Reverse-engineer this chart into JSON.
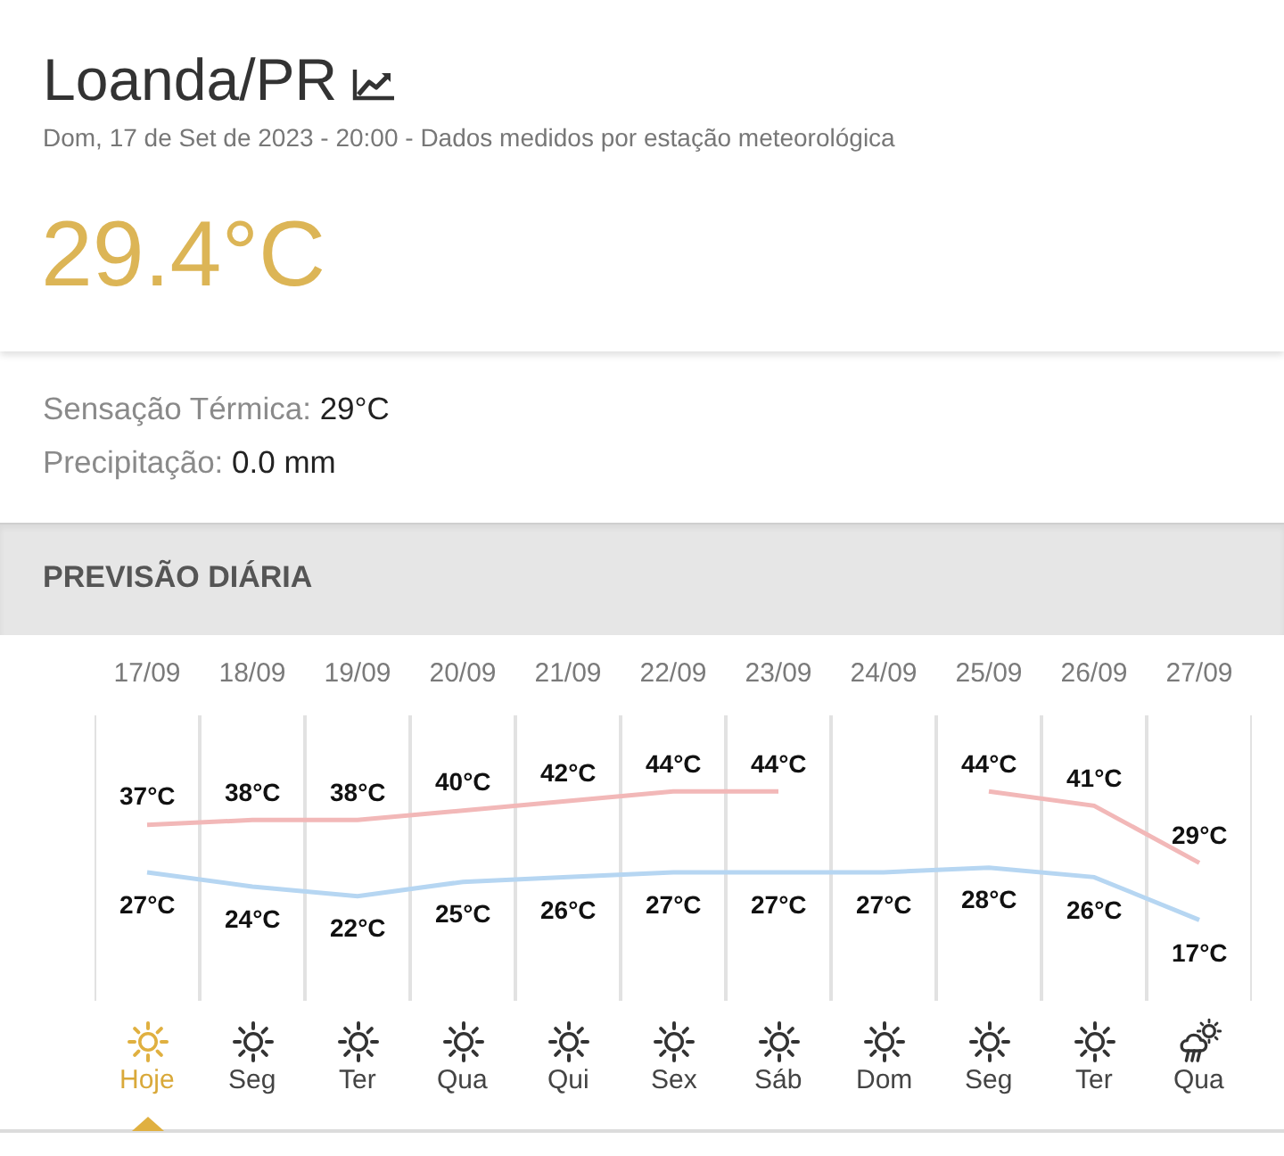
{
  "chart_data": {
    "type": "line",
    "title": "Loanda/PR",
    "subtitle": "Dom, 17 de Set de 2023 - 20:00 - Dados medidos por estação meteorológica",
    "categories": [
      "17/09",
      "18/09",
      "19/09",
      "20/09",
      "21/09",
      "22/09",
      "23/09",
      "24/09",
      "25/09",
      "26/09",
      "27/09"
    ],
    "series": [
      {
        "color": "#f2b8b8",
        "values": [
          37,
          38,
          38,
          40,
          42,
          44,
          44,
          null,
          44,
          41,
          29
        ],
        "value_labels": [
          "37°C",
          "38°C",
          "38°C",
          "40°C",
          "42°C",
          "44°C",
          "44°C",
          null,
          "44°C",
          "41°C",
          "29°C"
        ]
      },
      {
        "color": "#b6d6f2",
        "values": [
          27,
          24,
          22,
          25,
          26,
          27,
          27,
          27,
          28,
          26,
          17
        ],
        "value_labels": [
          "27°C",
          "24°C",
          "22°C",
          "25°C",
          "26°C",
          "27°C",
          "27°C",
          "27°C",
          "28°C",
          "26°C",
          "17°C"
        ]
      }
    ],
    "ylim": [
      0,
      60
    ],
    "grid": "x",
    "tick_labels": "x",
    "line_style": "solid",
    "annotations": [
      "29.4°C",
      "Sensação Térmica:",
      "29°C",
      "Precipitação:",
      "0.0 mm",
      "PREVISÃO DIÁRIA",
      {
        "text": "Hoje",
        "x": "17/09"
      },
      {
        "text": "Seg",
        "x": "18/09"
      },
      {
        "text": "Ter",
        "x": "19/09"
      },
      {
        "text": "Qua",
        "x": "20/09"
      },
      {
        "text": "Qui",
        "x": "21/09"
      },
      {
        "text": "Sex",
        "x": "22/09"
      },
      {
        "text": "Sáb",
        "x": "23/09"
      },
      {
        "text": "Dom",
        "x": "24/09"
      },
      {
        "text": "Seg",
        "x": "25/09"
      },
      {
        "text": "Ter",
        "x": "26/09"
      },
      {
        "text": "Qua",
        "x": "27/09"
      }
    ]
  }
}
